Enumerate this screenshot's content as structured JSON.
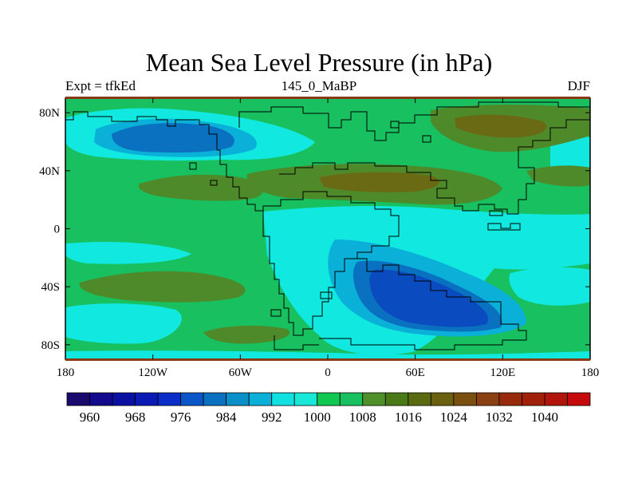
{
  "title": "Mean Sea Level Pressure (in hPa)",
  "subtitle_left": "Expt = tfkEd",
  "subtitle_center": "145_0_MaBP",
  "subtitle_right": "DJF",
  "map": {
    "lon_range": [
      -180,
      180
    ],
    "lat_range": [
      -90,
      90
    ],
    "x_ticks": [
      {
        "value": -180,
        "label": "180"
      },
      {
        "value": -120,
        "label": "120W"
      },
      {
        "value": -60,
        "label": "60W"
      },
      {
        "value": 0,
        "label": "0"
      },
      {
        "value": 60,
        "label": "60E"
      },
      {
        "value": 120,
        "label": "120E"
      },
      {
        "value": 180,
        "label": "180"
      }
    ],
    "y_ticks": [
      {
        "value": 80,
        "label": "80N"
      },
      {
        "value": 40,
        "label": "40N"
      },
      {
        "value": 0,
        "label": "0"
      },
      {
        "value": -40,
        "label": "40S"
      },
      {
        "value": -80,
        "label": "80S"
      }
    ],
    "background_level": "1000-1008 hPa"
  },
  "colorbar": {
    "colors": [
      "#1a0a6e",
      "#120a8c",
      "#0a10a0",
      "#0a1ab4",
      "#0a2cc8",
      "#0a56c8",
      "#0a70c0",
      "#0a90c8",
      "#0ab0d8",
      "#10e0e0",
      "#18e8d8",
      "#10c850",
      "#18c060",
      "#50902a",
      "#4a7a18",
      "#5a6a10",
      "#6a6010",
      "#7a5010",
      "#8a4010",
      "#962a0a",
      "#a0200a",
      "#b0140a",
      "#c40a0a"
    ],
    "labels": [
      "960",
      "968",
      "976",
      "984",
      "992",
      "1000",
      "1008",
      "1016",
      "1024",
      "1032",
      "1040"
    ]
  }
}
